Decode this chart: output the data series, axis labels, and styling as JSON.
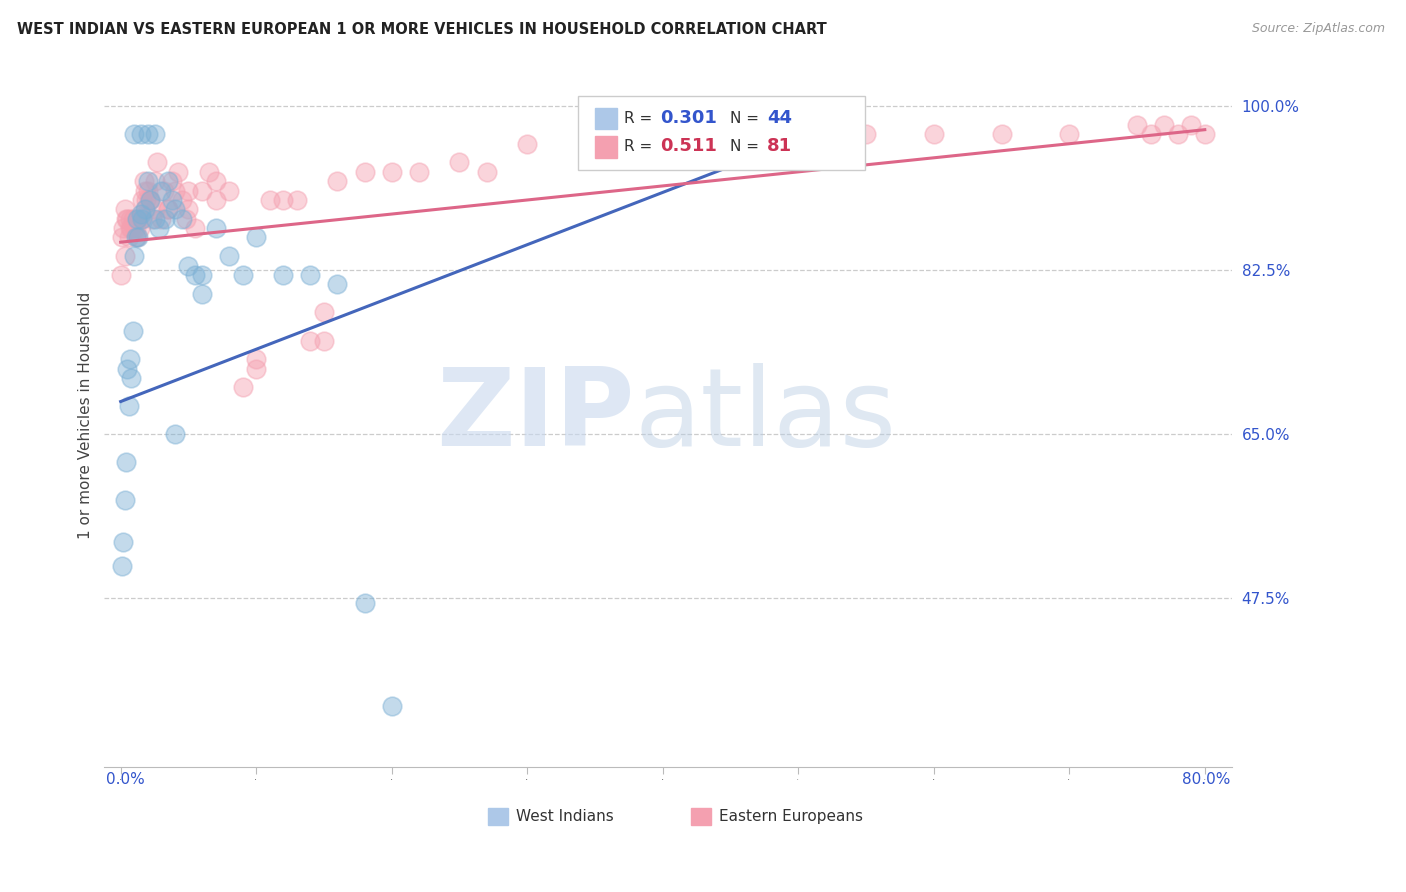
{
  "title": "WEST INDIAN VS EASTERN EUROPEAN 1 OR MORE VEHICLES IN HOUSEHOLD CORRELATION CHART",
  "source": "Source: ZipAtlas.com",
  "ylabel": "1 or more Vehicles in Household",
  "ylim": [
    0.295,
    1.045
  ],
  "xlim": [
    -0.012,
    0.82
  ],
  "hlines": [
    1.0,
    0.825,
    0.65,
    0.475
  ],
  "blue_color": "#7BAFD4",
  "pink_color": "#F4A0B0",
  "blue_line_color": "#4466BB",
  "pink_line_color": "#DD6688",
  "wi_line_x": [
    0.0,
    0.52
  ],
  "wi_line_y": [
    0.685,
    0.975
  ],
  "ee_line_x": [
    0.0,
    0.8
  ],
  "ee_line_y": [
    0.855,
    0.975
  ],
  "west_indians_x": [
    0.001,
    0.002,
    0.003,
    0.004,
    0.005,
    0.006,
    0.007,
    0.008,
    0.009,
    0.01,
    0.011,
    0.012,
    0.013,
    0.015,
    0.016,
    0.018,
    0.02,
    0.022,
    0.025,
    0.028,
    0.03,
    0.033,
    0.035,
    0.038,
    0.04,
    0.045,
    0.05,
    0.055,
    0.06,
    0.07,
    0.08,
    0.09,
    0.1,
    0.12,
    0.14,
    0.16,
    0.18,
    0.2,
    0.04,
    0.06,
    0.01,
    0.015,
    0.02,
    0.025
  ],
  "west_indians_y": [
    0.51,
    0.535,
    0.58,
    0.62,
    0.72,
    0.68,
    0.73,
    0.71,
    0.76,
    0.84,
    0.86,
    0.88,
    0.86,
    0.885,
    0.88,
    0.89,
    0.92,
    0.9,
    0.88,
    0.87,
    0.91,
    0.88,
    0.92,
    0.9,
    0.89,
    0.88,
    0.83,
    0.82,
    0.8,
    0.87,
    0.84,
    0.82,
    0.86,
    0.82,
    0.82,
    0.81,
    0.47,
    0.36,
    0.65,
    0.82,
    0.97,
    0.97,
    0.97,
    0.97
  ],
  "eastern_europeans_x": [
    0.0,
    0.001,
    0.002,
    0.003,
    0.004,
    0.005,
    0.006,
    0.007,
    0.008,
    0.009,
    0.01,
    0.011,
    0.012,
    0.013,
    0.014,
    0.015,
    0.016,
    0.017,
    0.018,
    0.019,
    0.02,
    0.021,
    0.022,
    0.023,
    0.025,
    0.027,
    0.03,
    0.032,
    0.035,
    0.038,
    0.04,
    0.042,
    0.045,
    0.048,
    0.05,
    0.055,
    0.06,
    0.065,
    0.07,
    0.08,
    0.09,
    0.1,
    0.11,
    0.12,
    0.13,
    0.14,
    0.15,
    0.16,
    0.18,
    0.2,
    0.22,
    0.25,
    0.27,
    0.3,
    0.35,
    0.38,
    0.4,
    0.42,
    0.45,
    0.48,
    0.5,
    0.55,
    0.6,
    0.65,
    0.7,
    0.75,
    0.76,
    0.77,
    0.78,
    0.79,
    0.8,
    0.003,
    0.007,
    0.012,
    0.018,
    0.025,
    0.035,
    0.05,
    0.07,
    0.1,
    0.15
  ],
  "eastern_europeans_y": [
    0.82,
    0.86,
    0.87,
    0.89,
    0.88,
    0.88,
    0.86,
    0.88,
    0.87,
    0.88,
    0.87,
    0.87,
    0.86,
    0.88,
    0.87,
    0.88,
    0.9,
    0.92,
    0.91,
    0.9,
    0.91,
    0.9,
    0.9,
    0.88,
    0.92,
    0.94,
    0.88,
    0.91,
    0.89,
    0.92,
    0.91,
    0.93,
    0.9,
    0.88,
    0.89,
    0.87,
    0.91,
    0.93,
    0.9,
    0.91,
    0.7,
    0.73,
    0.9,
    0.9,
    0.9,
    0.75,
    0.75,
    0.92,
    0.93,
    0.93,
    0.93,
    0.94,
    0.93,
    0.96,
    0.97,
    0.97,
    0.98,
    0.97,
    0.97,
    0.97,
    0.98,
    0.97,
    0.97,
    0.97,
    0.97,
    0.98,
    0.97,
    0.98,
    0.97,
    0.98,
    0.97,
    0.84,
    0.87,
    0.88,
    0.89,
    0.89,
    0.89,
    0.91,
    0.92,
    0.72,
    0.78
  ]
}
